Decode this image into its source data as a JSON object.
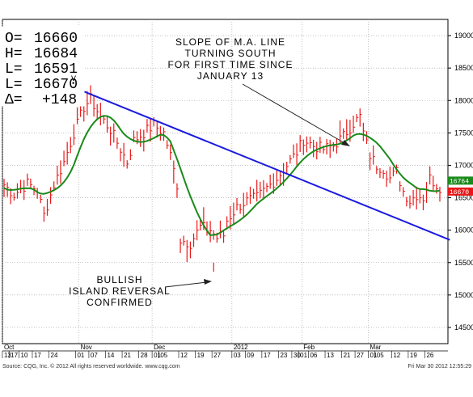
{
  "ohlc_box": {
    "open_label": "O=",
    "open": "16660",
    "high_label": "H=",
    "high": "16684",
    "low_label": "L=",
    "low": "16591",
    "last_label": "L=",
    "last": "16670",
    "last_flag": "V",
    "delta_label": "Δ=",
    "delta": "+148"
  },
  "annotations": {
    "slope_lines": [
      "SLOPE OF M.A. LINE",
      "TURNING SOUTH",
      "FOR FIRST TIME SINCE",
      "JANUARY 13"
    ],
    "island_lines": [
      "BULLISH",
      "ISLAND REVERSAL",
      "CONFIRMED"
    ]
  },
  "footer": {
    "source": "Source: CQG, Inc. © 2012 All rights reserved worldwide. www.cqg.com",
    "timestamp": "Fri Mar 30 2012 12:55:29"
  },
  "price_tags": {
    "ma": "16764",
    "last": "16670"
  },
  "colors": {
    "bars": "#e81818",
    "ma_line": "#1a8a1a",
    "trend_line": "#1a1ae0",
    "grid": "#9a9a9a",
    "ma_tag_bg": "#1a8a1a",
    "last_tag_bg": "#e81818"
  },
  "chart_data": {
    "type": "ohlc",
    "ylim": [
      14250,
      19250
    ],
    "y_ticks": [
      14500,
      15000,
      15500,
      16000,
      16500,
      17000,
      17500,
      18000,
      18500,
      19000
    ],
    "month_labels": [
      {
        "label": "Oct",
        "day_index": 0
      },
      {
        "label": "Nov",
        "day_index": 23
      },
      {
        "label": "Dec",
        "day_index": 45
      },
      {
        "label": "2012",
        "day_index": 69
      },
      {
        "label": "Feb",
        "day_index": 90
      },
      {
        "label": "Mar",
        "day_index": 110
      }
    ],
    "day_labels": [
      {
        "label": "13",
        "day_index": 0
      },
      {
        "label": "17",
        "day_index": 2
      },
      {
        "label": "10",
        "day_index": 5
      },
      {
        "label": "17",
        "day_index": 9
      },
      {
        "label": "24",
        "day_index": 14
      },
      {
        "label": "01",
        "day_index": 22
      },
      {
        "label": "07",
        "day_index": 26
      },
      {
        "label": "14",
        "day_index": 31
      },
      {
        "label": "21",
        "day_index": 36
      },
      {
        "label": "28",
        "day_index": 41
      },
      {
        "label": "01",
        "day_index": 45
      },
      {
        "label": "05",
        "day_index": 47
      },
      {
        "label": "12",
        "day_index": 53
      },
      {
        "label": "19",
        "day_index": 58
      },
      {
        "label": "27",
        "day_index": 63
      },
      {
        "label": "03",
        "day_index": 69
      },
      {
        "label": "09",
        "day_index": 73
      },
      {
        "label": "17",
        "day_index": 78
      },
      {
        "label": "23",
        "day_index": 83
      },
      {
        "label": "30",
        "day_index": 87
      },
      {
        "label": "01",
        "day_index": 89
      },
      {
        "label": "06",
        "day_index": 92
      },
      {
        "label": "13",
        "day_index": 97
      },
      {
        "label": "21",
        "day_index": 102
      },
      {
        "label": "27",
        "day_index": 106
      },
      {
        "label": "01",
        "day_index": 110
      },
      {
        "label": "05",
        "day_index": 112
      },
      {
        "label": "12",
        "day_index": 117
      },
      {
        "label": "19",
        "day_index": 122
      },
      {
        "label": "26",
        "day_index": 127
      }
    ],
    "trend_line": [
      {
        "day_index": 22,
        "value": 18180
      },
      {
        "day_index": 134,
        "value": 15850
      }
    ],
    "series": [
      {
        "name": "price",
        "type": "ohlc",
        "days": 132
      },
      {
        "name": "moving average",
        "type": "line"
      }
    ]
  }
}
